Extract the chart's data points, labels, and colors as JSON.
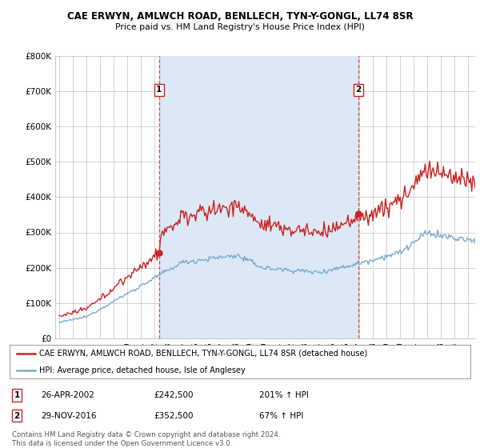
{
  "title1": "CAE ERWYN, AMLWCH ROAD, BENLLECH, TYN-Y-GONGL, LL74 8SR",
  "title2": "Price paid vs. HM Land Registry's House Price Index (HPI)",
  "xlim_start": 1994.7,
  "xlim_end": 2025.5,
  "ylim_bottom": 0,
  "ylim_top": 800000,
  "yticks": [
    0,
    100000,
    200000,
    300000,
    400000,
    500000,
    600000,
    700000,
    800000
  ],
  "ytick_labels": [
    "£0",
    "£100K",
    "£200K",
    "£300K",
    "£400K",
    "£500K",
    "£600K",
    "£700K",
    "£800K"
  ],
  "hpi_color": "#7aaad0",
  "price_color": "#cc2222",
  "vline_color": "#cc2222",
  "shade_color": "#dce8f5",
  "marker1_date": 2002.32,
  "marker1_hpi": 242500,
  "marker1_label": "1",
  "marker2_date": 2016.92,
  "marker2_hpi": 352500,
  "marker2_label": "2",
  "legend_entry1": "CAE ERWYN, AMLWCH ROAD, BENLLECH, TYN-Y-GONGL, LL74 8SR (detached house)",
  "legend_entry2": "HPI: Average price, detached house, Isle of Anglesey",
  "annotation1_date": "26-APR-2002",
  "annotation1_price": "£242,500",
  "annotation1_pct": "201% ↑ HPI",
  "annotation2_date": "29-NOV-2016",
  "annotation2_price": "£352,500",
  "annotation2_pct": "67% ↑ HPI",
  "footer": "Contains HM Land Registry data © Crown copyright and database right 2024.\nThis data is licensed under the Open Government Licence v3.0.",
  "bg_color": "#ffffff",
  "grid_color": "#cccccc"
}
